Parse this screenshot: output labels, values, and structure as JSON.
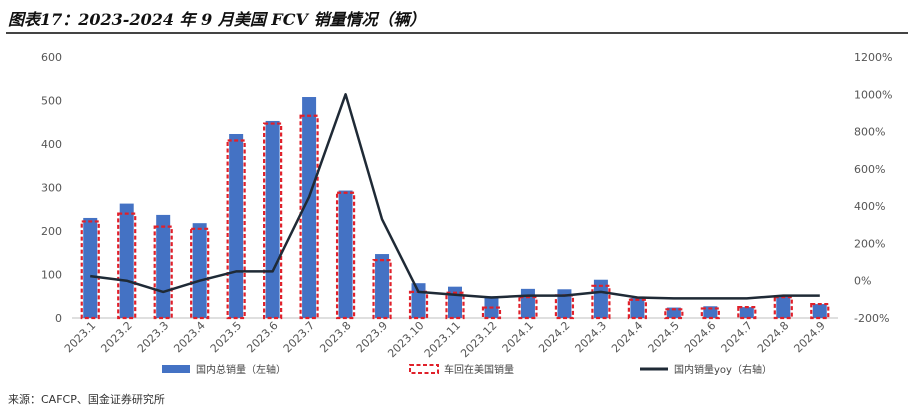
{
  "title": "图表17：2023-2024 年 9 月美国 FCV 销量情况（辆）",
  "source": "来源：CAFCP、国金证券研究所",
  "chart_data": {
    "type": "bar",
    "categories": [
      "2023.1",
      "2023.2",
      "2023.3",
      "2023.4",
      "2023.5",
      "2023.6",
      "2023.7",
      "2023.8",
      "2023.9",
      "2023.10",
      "2023.11",
      "2023.12",
      "2024.1",
      "2024.2",
      "2024.3",
      "2024.4",
      "2024.5",
      "2024.6",
      "2024.7",
      "2024.8",
      "2024.9"
    ],
    "series": [
      {
        "name": "国内总销量（左轴）",
        "axis": "left",
        "kind": "bar",
        "color": "#4472C4",
        "values": [
          230,
          263,
          237,
          218,
          423,
          453,
          508,
          293,
          147,
          80,
          72,
          50,
          67,
          66,
          88,
          46,
          24,
          27,
          25,
          50,
          32
        ]
      },
      {
        "name": "车回在美国销量",
        "axis": "left",
        "kind": "bar-dashed",
        "color": "#E0202A",
        "values": [
          222,
          240,
          210,
          205,
          408,
          447,
          465,
          288,
          133,
          60,
          58,
          24,
          48,
          52,
          74,
          42,
          20,
          22,
          25,
          48,
          32
        ]
      },
      {
        "name": "国内销量yoy（右轴）",
        "axis": "right",
        "kind": "line",
        "color": "#1F2A36",
        "values": [
          25,
          0,
          -60,
          0,
          50,
          50,
          450,
          1000,
          330,
          -60,
          -75,
          -90,
          -80,
          -80,
          -60,
          -90,
          -95,
          -95,
          -95,
          -80,
          -80
        ]
      }
    ],
    "y_left": {
      "min": 0,
      "max": 600,
      "ticks": [
        0,
        100,
        200,
        300,
        400,
        500,
        600
      ]
    },
    "y_right": {
      "min": -200,
      "max": 1200,
      "ticks": [
        "-200%",
        "0%",
        "200%",
        "400%",
        "600%",
        "800%",
        "1000%",
        "1200%"
      ],
      "tick_values": [
        -200,
        0,
        200,
        400,
        600,
        800,
        1000,
        1200
      ]
    },
    "grid": false,
    "legend_position": "bottom"
  }
}
